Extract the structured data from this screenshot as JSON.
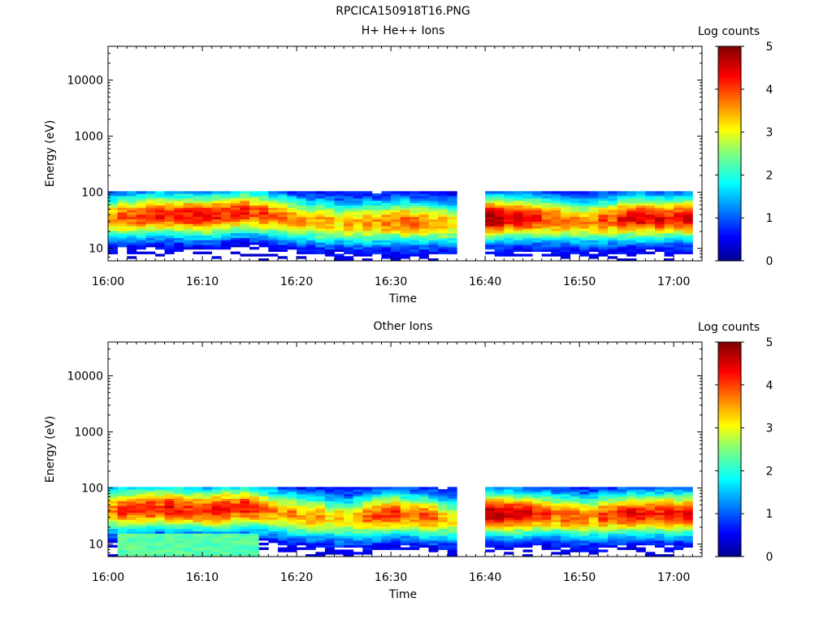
{
  "figure_title": "RPCICA150918T16.PNG",
  "chart_data": [
    {
      "type": "heatmap",
      "title": "H+ He++ Ions",
      "xlabel": "Time",
      "ylabel": "Energy (eV)",
      "x_tick_labels": [
        "16:00",
        "16:10",
        "16:20",
        "16:30",
        "16:40",
        "16:50",
        "17:00"
      ],
      "y_tick_labels": [
        "10",
        "100",
        "1000",
        "10000"
      ],
      "y_scale": "log",
      "ylim": [
        6,
        40000
      ],
      "xlim": [
        "16:00",
        "16:63"
      ],
      "colorbar": {
        "label": "Log counts",
        "ticks": [
          "0",
          "1",
          "2",
          "3",
          "4",
          "5"
        ],
        "range": [
          0,
          5
        ],
        "colormap": "jet"
      },
      "data_gap": [
        "16:37",
        "16:40"
      ],
      "profile": [
        {
          "t": 0,
          "peak_ev": 35,
          "max_log": 3.9
        },
        {
          "t": 5,
          "peak_ev": 40,
          "max_log": 4.2
        },
        {
          "t": 10,
          "peak_ev": 38,
          "max_log": 4.1
        },
        {
          "t": 14,
          "peak_ev": 45,
          "max_log": 4.2
        },
        {
          "t": 20,
          "peak_ev": 32,
          "max_log": 3.5
        },
        {
          "t": 25,
          "peak_ev": 28,
          "max_log": 3.3
        },
        {
          "t": 30,
          "peak_ev": 30,
          "max_log": 3.8
        },
        {
          "t": 36,
          "peak_ev": 28,
          "max_log": 3.4
        },
        {
          "t": 40,
          "peak_ev": 35,
          "max_log": 4.8
        },
        {
          "t": 45,
          "peak_ev": 35,
          "max_log": 4.2
        },
        {
          "t": 50,
          "peak_ev": 30,
          "max_log": 3.7
        },
        {
          "t": 55,
          "peak_ev": 35,
          "max_log": 4.3
        },
        {
          "t": 62,
          "peak_ev": 35,
          "max_log": 4.3
        }
      ]
    },
    {
      "type": "heatmap",
      "title": "Other Ions",
      "xlabel": "Time",
      "ylabel": "Energy (eV)",
      "x_tick_labels": [
        "16:00",
        "16:10",
        "16:20",
        "16:30",
        "16:40",
        "16:50",
        "17:00"
      ],
      "y_tick_labels": [
        "10",
        "100",
        "1000",
        "10000"
      ],
      "y_scale": "log",
      "ylim": [
        6,
        40000
      ],
      "xlim": [
        "16:00",
        "16:63"
      ],
      "colorbar": {
        "label": "Log counts",
        "ticks": [
          "0",
          "1",
          "2",
          "3",
          "4",
          "5"
        ],
        "range": [
          0,
          5
        ],
        "colormap": "jet"
      },
      "data_gap": [
        "16:37",
        "16:40"
      ],
      "low_energy_band": {
        "t_range": [
          1,
          15
        ],
        "energy_range": [
          6,
          16
        ],
        "log_counts": 2.3
      },
      "profile": [
        {
          "t": 0,
          "peak_ev": 40,
          "max_log": 3.9
        },
        {
          "t": 5,
          "peak_ev": 45,
          "max_log": 4.2
        },
        {
          "t": 10,
          "peak_ev": 40,
          "max_log": 4.0
        },
        {
          "t": 14,
          "peak_ev": 45,
          "max_log": 4.3
        },
        {
          "t": 20,
          "peak_ev": 32,
          "max_log": 3.3
        },
        {
          "t": 25,
          "peak_ev": 28,
          "max_log": 3.3
        },
        {
          "t": 30,
          "peak_ev": 35,
          "max_log": 4.1
        },
        {
          "t": 36,
          "peak_ev": 28,
          "max_log": 3.3
        },
        {
          "t": 40,
          "peak_ev": 35,
          "max_log": 4.8
        },
        {
          "t": 45,
          "peak_ev": 35,
          "max_log": 4.2
        },
        {
          "t": 50,
          "peak_ev": 30,
          "max_log": 3.5
        },
        {
          "t": 55,
          "peak_ev": 35,
          "max_log": 4.3
        },
        {
          "t": 62,
          "peak_ev": 35,
          "max_log": 4.3
        }
      ]
    }
  ]
}
